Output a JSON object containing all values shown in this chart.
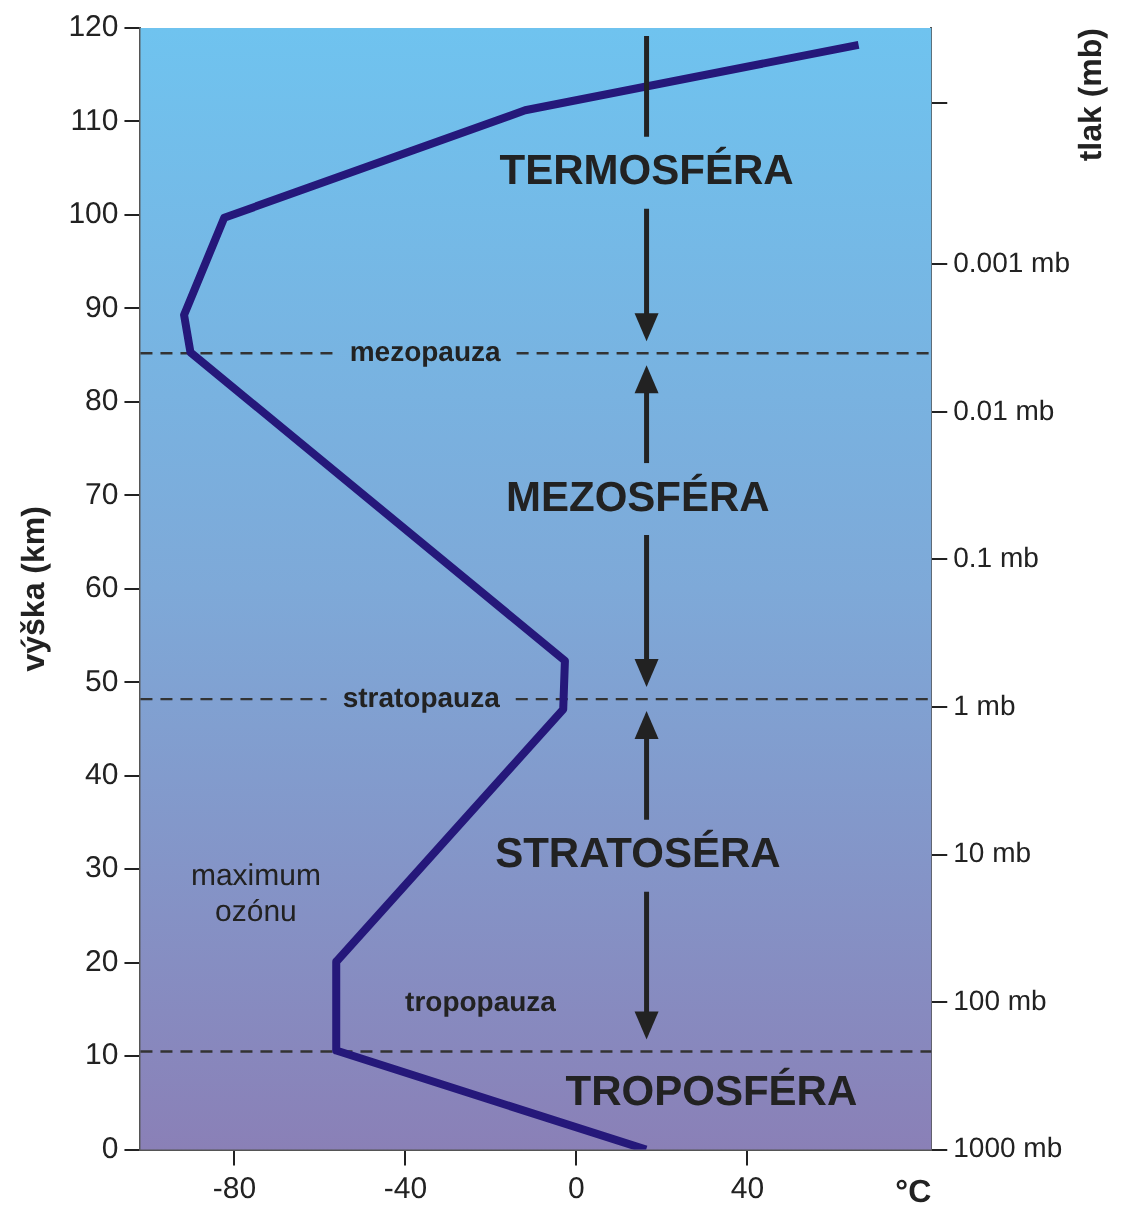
{
  "chart_data": {
    "type": "line",
    "xlabel": "°C",
    "ylabel": "výška (km)",
    "y2label": "tlak (mb)",
    "x": [
      66,
      -12,
      -82.4,
      -91.8,
      -90.3,
      -2.7,
      -3.1,
      -56.2,
      -56.2,
      16.3
    ],
    "series": [
      {
        "color": "#25187a",
        "values": [
          118.2,
          111.2,
          99.7,
          89.3,
          85.3,
          52.3,
          47.1,
          20.1,
          10.6,
          0
        ]
      }
    ],
    "xlim": [
      -102,
      83
    ],
    "xticks": [
      -80,
      -40,
      0,
      40
    ],
    "ylim": [
      0,
      120
    ],
    "yticks": [
      0,
      10,
      20,
      30,
      40,
      50,
      60,
      70,
      80,
      90,
      100,
      110,
      120
    ],
    "log": "y2",
    "y2lim": [
      1000,
      2.5e-05
    ],
    "y2ticks": [
      {
        "value": 8e-05,
        "label": null
      },
      {
        "value": 0.001,
        "label": "0.001 mb"
      },
      {
        "value": 0.01,
        "label": "0.01 mb"
      },
      {
        "value": 0.1,
        "label": "0.1 mb"
      },
      {
        "value": 1,
        "label": "1 mb"
      },
      {
        "value": 10,
        "label": "10 mb"
      },
      {
        "value": 100,
        "label": "100 mb"
      },
      {
        "value": 1000,
        "label": "1000 mb"
      }
    ],
    "ref_lines": [
      {
        "axis": "y",
        "value": 85.2,
        "label": "mezopauza",
        "color": "#333333",
        "line_style": "dashed"
      },
      {
        "axis": "y",
        "value": 48.2,
        "label": "stratopauza",
        "color": "#333333",
        "line_style": "dashed"
      },
      {
        "axis": "y",
        "value": 10.5,
        "label": "tropopauza",
        "color": "#333333",
        "line_style": "dashed"
      }
    ],
    "annotations": [
      "TERMOSFÉRA",
      "MEZOSFÉRA",
      "STRATOSÉRA",
      "TROPOSFÉRA",
      "maximum\nozónu"
    ],
    "grid": false,
    "legend": false,
    "marker": "none",
    "line_style": "solid"
  }
}
